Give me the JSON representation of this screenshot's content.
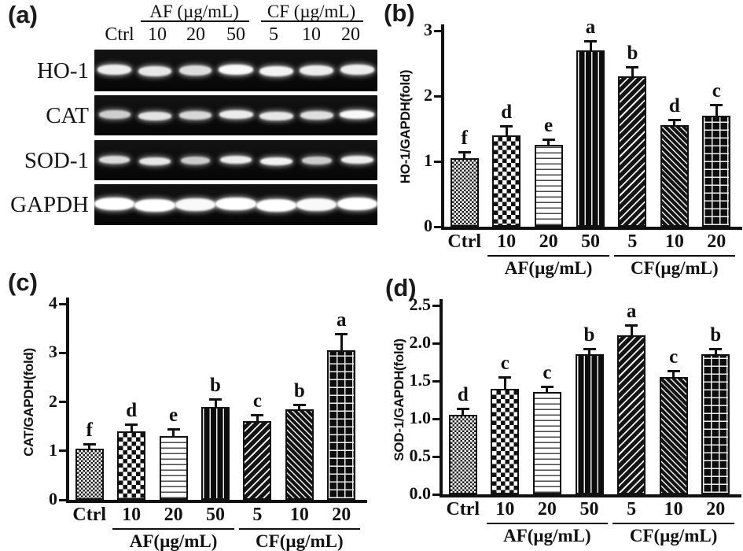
{
  "figure": {
    "panel_labels": {
      "a": "(a)",
      "b": "(b)",
      "c": "(c)",
      "d": "(d)"
    }
  },
  "panel_a": {
    "group_headers": [
      {
        "label": "AF (µg/mL)"
      },
      {
        "label": "CF (µg/mL)"
      }
    ],
    "lane_labels": [
      "Ctrl",
      "10",
      "20",
      "50",
      "5",
      "10",
      "20"
    ],
    "rows": [
      {
        "name": "HO-1",
        "band_intensities": [
          0.85,
          0.8,
          0.72,
          0.95,
          0.9,
          0.84,
          0.86
        ]
      },
      {
        "name": "CAT",
        "band_intensities": [
          0.6,
          0.78,
          0.68,
          0.85,
          0.8,
          0.74,
          0.95
        ]
      },
      {
        "name": "SOD-1",
        "band_intensities": [
          0.7,
          0.8,
          0.58,
          0.85,
          0.9,
          0.58,
          0.85
        ]
      },
      {
        "name": "GAPDH",
        "band_intensities": [
          1.0,
          1.0,
          0.95,
          1.0,
          1.0,
          0.95,
          1.0
        ]
      }
    ]
  },
  "chart_data": [
    {
      "panel": "b",
      "type": "bar",
      "title": "",
      "xlabel": "",
      "ylabel": "HO-1/GAPDH(fold)",
      "ylim": [
        0,
        3
      ],
      "yticks": [
        "0",
        "1",
        "2",
        "3"
      ],
      "grid": false,
      "legend": "none",
      "categories": [
        "Ctrl",
        "10",
        "20",
        "50",
        "5",
        "10",
        "20"
      ],
      "values": [
        1.05,
        1.4,
        1.25,
        2.7,
        2.3,
        1.55,
        1.7
      ],
      "errors": [
        0.08,
        0.13,
        0.07,
        0.13,
        0.13,
        0.08,
        0.15
      ],
      "sig_letters": [
        "f",
        "d",
        "e",
        "a",
        "b",
        "d",
        "c"
      ],
      "groups": [
        {
          "label": "AF(µg/mL)",
          "from": 1,
          "to": 3
        },
        {
          "label": "CF(µg/mL)",
          "from": 4,
          "to": 6
        }
      ],
      "patterns": [
        "checker-fine",
        "checker",
        "hlines",
        "vlines",
        "diag-up",
        "diag-down",
        "crosshatch"
      ]
    },
    {
      "panel": "c",
      "type": "bar",
      "title": "",
      "xlabel": "",
      "ylabel": "CAT/GAPDH(fold)",
      "ylim": [
        0,
        4
      ],
      "yticks": [
        "0",
        "1",
        "2",
        "3",
        "4"
      ],
      "grid": false,
      "legend": "none",
      "categories": [
        "Ctrl",
        "10",
        "20",
        "50",
        "5",
        "10",
        "20"
      ],
      "values": [
        1.05,
        1.4,
        1.3,
        1.9,
        1.6,
        1.85,
        3.05
      ],
      "errors": [
        0.07,
        0.13,
        0.13,
        0.14,
        0.12,
        0.08,
        0.33
      ],
      "sig_letters": [
        "f",
        "d",
        "e",
        "b",
        "c",
        "b",
        "a"
      ],
      "groups": [
        {
          "label": "AF(µg/mL)",
          "from": 1,
          "to": 3
        },
        {
          "label": "CF(µg/mL)",
          "from": 4,
          "to": 6
        }
      ],
      "patterns": [
        "checker-fine",
        "checker",
        "hlines",
        "vlines",
        "diag-up",
        "diag-down",
        "crosshatch"
      ]
    },
    {
      "panel": "d",
      "type": "bar",
      "title": "",
      "xlabel": "",
      "ylabel": "SOD-1/GAPDH(fold)",
      "ylim": [
        0,
        2.5
      ],
      "yticks": [
        "0.0",
        "0.5",
        "1.0",
        "1.5",
        "2.0",
        "2.5"
      ],
      "grid": false,
      "legend": "none",
      "categories": [
        "Ctrl",
        "10",
        "20",
        "50",
        "5",
        "10",
        "20"
      ],
      "values": [
        1.05,
        1.4,
        1.35,
        1.85,
        2.1,
        1.55,
        1.85
      ],
      "errors": [
        0.07,
        0.14,
        0.07,
        0.07,
        0.13,
        0.07,
        0.07
      ],
      "sig_letters": [
        "d",
        "c",
        "c",
        "b",
        "a",
        "c",
        "b"
      ],
      "groups": [
        {
          "label": "AF(µg/mL)",
          "from": 1,
          "to": 3
        },
        {
          "label": "CF(µg/mL)",
          "from": 4,
          "to": 6
        }
      ],
      "patterns": [
        "checker-fine",
        "checker",
        "hlines",
        "vlines",
        "diag-up",
        "diag-down",
        "crosshatch"
      ]
    }
  ]
}
